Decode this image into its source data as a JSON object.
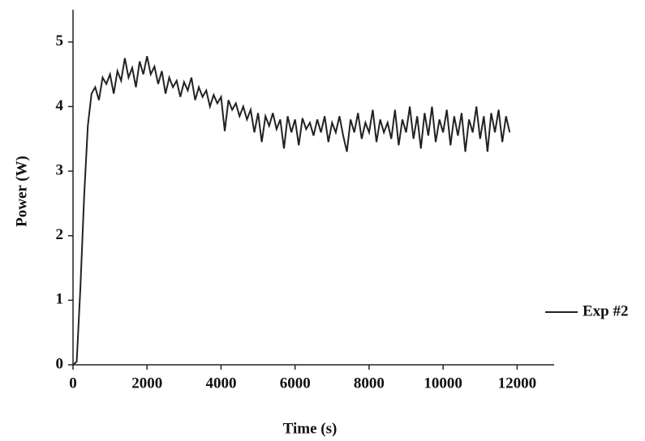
{
  "chart_data": {
    "type": "line",
    "x_label": "Time (s)",
    "y_label": "Power (W)",
    "xlim": [
      0,
      13000
    ],
    "xticks": [
      0,
      2000,
      4000,
      6000,
      8000,
      10000,
      12000
    ],
    "ylim": [
      0,
      5.5
    ],
    "yticks": [
      0,
      1,
      2,
      3,
      4,
      5
    ],
    "legend": "right",
    "series": [
      {
        "name": "Exp #2",
        "color": "#222222",
        "x": [
          0,
          100,
          200,
          300,
          400,
          500,
          600,
          700,
          800,
          900,
          1000,
          1100,
          1200,
          1300,
          1400,
          1500,
          1600,
          1700,
          1800,
          1900,
          2000,
          2100,
          2200,
          2300,
          2400,
          2500,
          2600,
          2700,
          2800,
          2900,
          3000,
          3100,
          3200,
          3300,
          3400,
          3500,
          3600,
          3700,
          3800,
          3900,
          4000,
          4100,
          4200,
          4300,
          4400,
          4500,
          4600,
          4700,
          4800,
          4900,
          5000,
          5100,
          5200,
          5300,
          5400,
          5500,
          5600,
          5700,
          5800,
          5900,
          6000,
          6100,
          6200,
          6300,
          6400,
          6500,
          6600,
          6700,
          6800,
          6900,
          7000,
          7100,
          7200,
          7300,
          7400,
          7500,
          7600,
          7700,
          7800,
          7900,
          8000,
          8100,
          8200,
          8300,
          8400,
          8500,
          8600,
          8700,
          8800,
          8900,
          9000,
          9100,
          9200,
          9300,
          9400,
          9500,
          9600,
          9700,
          9800,
          9900,
          10000,
          10100,
          10200,
          10300,
          10400,
          10500,
          10600,
          10700,
          10800,
          10900,
          11000,
          11100,
          11200,
          11300,
          11400,
          11500,
          11600,
          11700,
          11800
        ],
        "values": [
          0,
          0.05,
          1.2,
          2.6,
          3.7,
          4.2,
          4.3,
          4.1,
          4.45,
          4.35,
          4.5,
          4.2,
          4.55,
          4.4,
          4.75,
          4.45,
          4.6,
          4.3,
          4.7,
          4.5,
          4.78,
          4.5,
          4.62,
          4.35,
          4.55,
          4.2,
          4.45,
          4.3,
          4.4,
          4.15,
          4.38,
          4.25,
          4.45,
          4.1,
          4.3,
          4.15,
          4.25,
          4.0,
          4.18,
          4.05,
          4.15,
          3.62,
          4.1,
          3.95,
          4.05,
          3.85,
          4.0,
          3.8,
          3.95,
          3.6,
          3.9,
          3.45,
          3.85,
          3.7,
          3.9,
          3.65,
          3.8,
          3.35,
          3.85,
          3.6,
          3.8,
          3.4,
          3.82,
          3.65,
          3.75,
          3.55,
          3.8,
          3.6,
          3.85,
          3.45,
          3.75,
          3.6,
          3.85,
          3.55,
          3.3,
          3.8,
          3.6,
          3.9,
          3.5,
          3.75,
          3.6,
          3.95,
          3.45,
          3.8,
          3.6,
          3.75,
          3.5,
          3.95,
          3.4,
          3.8,
          3.6,
          4.0,
          3.5,
          3.85,
          3.35,
          3.9,
          3.55,
          4.0,
          3.45,
          3.8,
          3.6,
          3.95,
          3.4,
          3.85,
          3.55,
          3.9,
          3.3,
          3.8,
          3.6,
          4.0,
          3.5,
          3.85,
          3.3,
          3.9,
          3.6,
          3.95,
          3.45,
          3.85,
          3.6
        ]
      }
    ]
  }
}
